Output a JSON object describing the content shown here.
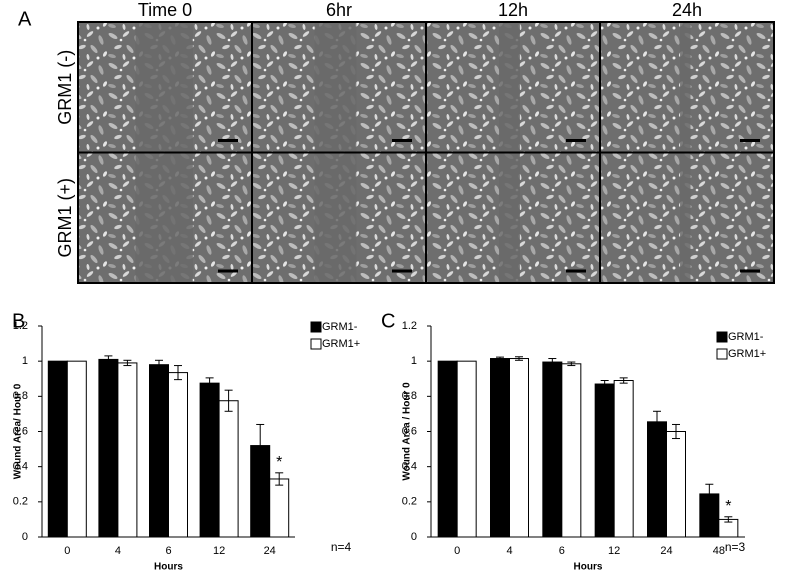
{
  "panel_a": {
    "label": "A",
    "columns": [
      "Time 0",
      "6hr",
      "12h",
      "24h"
    ],
    "rows": [
      "GRM1 (-)",
      "GRM1 (+)"
    ]
  },
  "chart_data": [
    {
      "type": "bar",
      "panel_label": "B",
      "x_label": "Hours",
      "y_label": "Wound Area/ Hour 0",
      "categories": [
        "0",
        "4",
        "6",
        "12",
        "24"
      ],
      "series": [
        {
          "name": "GRM1-",
          "color": "#000000",
          "values": [
            1,
            1.01,
            0.98,
            0.875,
            0.52
          ],
          "errors": [
            0,
            0.02,
            0.025,
            0.03,
            0.12
          ]
        },
        {
          "name": "GRM1+",
          "color": "#ffffff",
          "values": [
            1,
            0.99,
            0.935,
            0.775,
            0.33
          ],
          "errors": [
            0,
            0.015,
            0.04,
            0.06,
            0.035
          ]
        }
      ],
      "ylim": [
        0,
        1.2
      ],
      "yticks": [
        0,
        0.2,
        0.4,
        0.6,
        0.8,
        1,
        1.2
      ],
      "annotation": "*",
      "note": "n=4"
    },
    {
      "type": "bar",
      "panel_label": "C",
      "x_label": "Hours",
      "y_label": "Wound Area / Hour 0",
      "categories": [
        "0",
        "4",
        "6",
        "12",
        "24",
        "48"
      ],
      "series": [
        {
          "name": "GRM1-",
          "color": "#000000",
          "values": [
            1,
            1.015,
            0.995,
            0.87,
            0.655,
            0.245
          ],
          "errors": [
            0,
            0.008,
            0.02,
            0.02,
            0.06,
            0.055
          ]
        },
        {
          "name": "GRM1+",
          "color": "#ffffff",
          "values": [
            1,
            1.015,
            0.985,
            0.89,
            0.6,
            0.1
          ],
          "errors": [
            0,
            0.01,
            0.01,
            0.015,
            0.04,
            0.015
          ]
        }
      ],
      "ylim": [
        0,
        1.2
      ],
      "yticks": [
        0,
        0.2,
        0.4,
        0.6,
        0.8,
        1,
        1.2
      ],
      "annotation": "*",
      "note": "n=3"
    }
  ]
}
